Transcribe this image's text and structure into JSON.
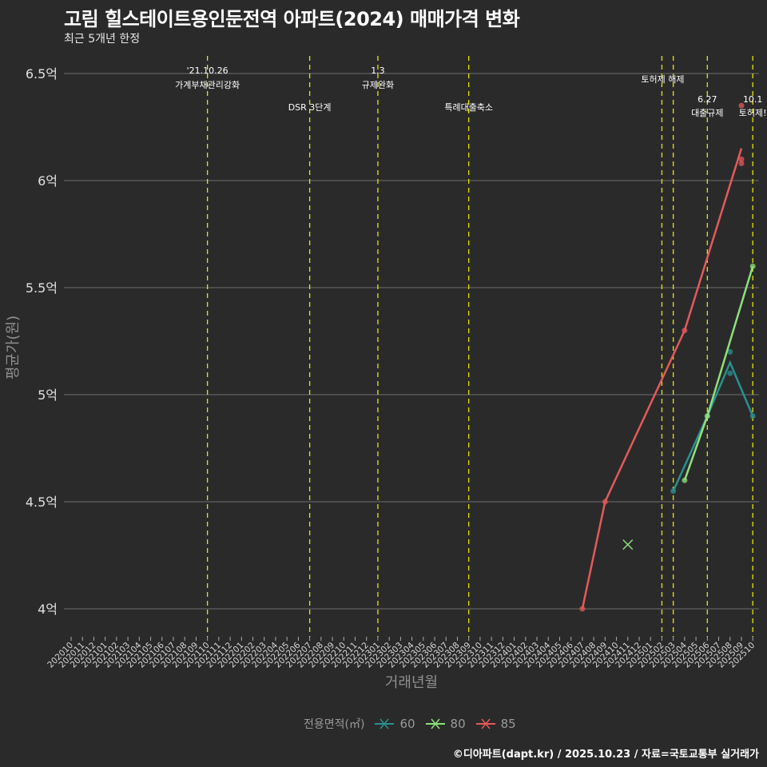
{
  "header": {
    "title": "고림 힐스테이트용인둔전역 아파트(2024) 매매가격 변화",
    "subtitle": "최근 5개년 한정"
  },
  "caption": "©디아파트(dapt.kr) / 2025.10.23 / 자료=국토교통부 실거래가",
  "legend": {
    "title": "전용면적(㎡)",
    "items": [
      {
        "label": "60",
        "color": "#2a9090"
      },
      {
        "label": "80",
        "color": "#8ee07a"
      },
      {
        "label": "85",
        "color": "#e45a5a"
      }
    ]
  },
  "axes": {
    "xlabel": "거래년월",
    "ylabel": "평균가(원)"
  },
  "chart_data": {
    "type": "line",
    "title": "고림 힐스테이트용인둔전역 아파트(2024) 매매가격 변화",
    "subtitle": "최근 5개년 한정",
    "xlabel": "거래년월",
    "ylabel": "평균가(원)",
    "ylim": [
      3.9,
      6.6
    ],
    "y_ticks": [
      {
        "value": 4.0,
        "label": "4억"
      },
      {
        "value": 4.5,
        "label": "4.5억"
      },
      {
        "value": 5.0,
        "label": "5억"
      },
      {
        "value": 5.5,
        "label": "5.5억"
      },
      {
        "value": 6.0,
        "label": "6억"
      },
      {
        "value": 6.5,
        "label": "6.5억"
      }
    ],
    "x_ticks": [
      "202010",
      "202011",
      "202012",
      "202101",
      "202102",
      "202103",
      "202104",
      "202105",
      "202106",
      "202107",
      "202108",
      "202109",
      "202110",
      "202111",
      "202112",
      "202201",
      "202202",
      "202203",
      "202204",
      "202205",
      "202206",
      "202207",
      "202208",
      "202209",
      "202210",
      "202211",
      "202212",
      "202301",
      "202302",
      "202303",
      "202304",
      "202305",
      "202306",
      "202307",
      "202308",
      "202309",
      "202310",
      "202311",
      "202312",
      "202401",
      "202402",
      "202403",
      "202404",
      "202405",
      "202406",
      "202407",
      "202408",
      "202409",
      "202410",
      "202411",
      "202412",
      "202501",
      "202502",
      "202503",
      "202504",
      "202505",
      "202506",
      "202507",
      "202508",
      "202509",
      "202510"
    ],
    "grid": true,
    "legend_position": "bottom",
    "series": [
      {
        "name": "60",
        "color": "#2a9090",
        "line": [
          {
            "x": "202503",
            "y": 4.55
          },
          {
            "x": "202506",
            "y": 4.9
          },
          {
            "x": "202508",
            "y": 5.15
          },
          {
            "x": "202510",
            "y": 4.9
          }
        ],
        "points": [
          {
            "x": "202503",
            "y": 4.55
          },
          {
            "x": "202506",
            "y": 4.9
          },
          {
            "x": "202508",
            "y": 5.2
          },
          {
            "x": "202508",
            "y": 5.1
          },
          {
            "x": "202510",
            "y": 4.9
          }
        ]
      },
      {
        "name": "80",
        "color": "#8ee07a",
        "line": [
          {
            "x": "202504",
            "y": 4.6
          },
          {
            "x": "202506",
            "y": 4.9
          },
          {
            "x": "202510",
            "y": 5.6
          }
        ],
        "points": [
          {
            "x": "202504",
            "y": 4.6
          },
          {
            "x": "202506",
            "y": 4.9
          },
          {
            "x": "202510",
            "y": 5.6
          }
        ],
        "x_markers": [
          {
            "x": "202411",
            "y": 4.3
          }
        ]
      },
      {
        "name": "85",
        "color": "#e45a5a",
        "line": [
          {
            "x": "202407",
            "y": 4.0
          },
          {
            "x": "202409",
            "y": 4.5
          },
          {
            "x": "202504",
            "y": 5.3
          },
          {
            "x": "202509",
            "y": 6.15
          }
        ],
        "points": [
          {
            "x": "202407",
            "y": 4.0
          },
          {
            "x": "202409",
            "y": 4.5
          },
          {
            "x": "202504",
            "y": 5.3
          },
          {
            "x": "202509",
            "y": 6.1
          },
          {
            "x": "202509",
            "y": 6.08
          },
          {
            "x": "202509",
            "y": 6.35
          }
        ]
      }
    ],
    "annotations": [
      {
        "x": "202110",
        "line1": "'21.10.26",
        "line2": "가계부채관리강화"
      },
      {
        "x": "202207",
        "line1": "",
        "line2": "DSR 3단계"
      },
      {
        "x": "202301",
        "line1": "1.3",
        "line2": "규제완화"
      },
      {
        "x": "202309",
        "line1": "",
        "line2": "특례대출축소"
      },
      {
        "x": "202502",
        "line1": "",
        "line2": "토허제 해제"
      },
      {
        "x": "202503",
        "line1": "",
        "line2": ""
      },
      {
        "x": "202506",
        "line1": "6.27",
        "line2": "대출규제"
      },
      {
        "x": "202510",
        "line1": "10.1",
        "line2": "토허제!"
      }
    ]
  }
}
